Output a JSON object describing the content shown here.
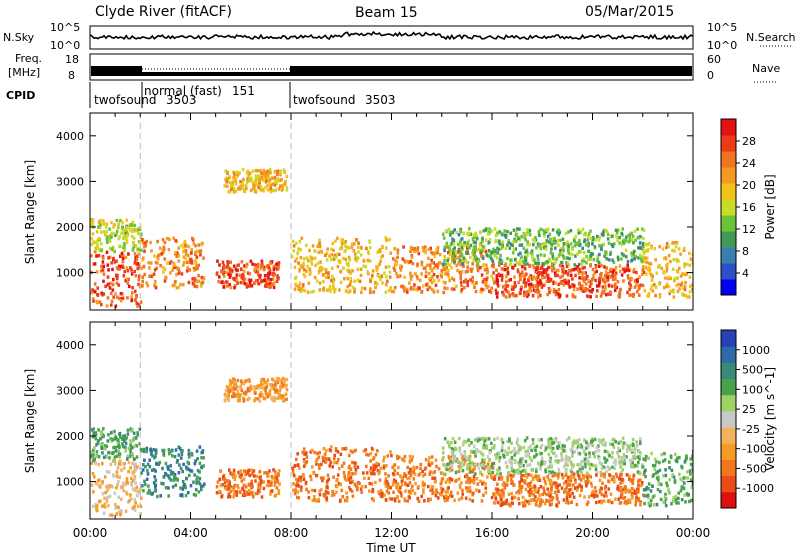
{
  "header": {
    "station": "Clyde River (fitACF)",
    "beam": "Beam 15",
    "date": "05/Mar/2015"
  },
  "noise_panel": {
    "left_label": "N.Sky",
    "left_ticks": [
      "10^5",
      "10^0"
    ],
    "right_label": "N.Search",
    "right_ticks": [
      "10^5",
      "10^0"
    ]
  },
  "freq_panel": {
    "left_label_top": "Freq.",
    "left_label_bottom": "[MHz]",
    "left_ticks": [
      "18",
      "8"
    ],
    "right_label": "Nave",
    "right_ticks": [
      "60",
      "0"
    ]
  },
  "cpid": {
    "label": "CPID",
    "modes": [
      {
        "name": "twofsound",
        "id": "3503",
        "start_hr": 0
      },
      {
        "name": "normal (fast)",
        "id": "151",
        "start_hr": 2.0
      },
      {
        "name": "twofsound",
        "id": "3503",
        "start_hr": 8.0
      }
    ]
  },
  "time_axis": {
    "label": "Time UT",
    "range_hr": [
      0,
      24
    ],
    "tick_labels": [
      "00:00",
      "04:00",
      "08:00",
      "12:00",
      "16:00",
      "20:00",
      "00:00"
    ]
  },
  "range_axis": {
    "label": "Slant Range [km]",
    "range_km": [
      180,
      4500
    ],
    "tick_labels": [
      "1000",
      "2000",
      "3000",
      "4000"
    ]
  },
  "power_colorbar": {
    "label": "Power [dB]",
    "tick_labels": [
      "4",
      "8",
      "12",
      "16",
      "20",
      "24",
      "28"
    ],
    "colors": [
      "#0000ee",
      "#2b50c8",
      "#3b7fae",
      "#3e9a55",
      "#6cc33a",
      "#c8dc28",
      "#f2c21a",
      "#f59a20",
      "#f27322",
      "#ef3a18",
      "#e21212"
    ]
  },
  "velocity_colorbar": {
    "label": "Velocity [m s^-1]",
    "tick_labels": [
      "1000",
      "500",
      "100",
      "25",
      "-25",
      "-100",
      "-500",
      "-1000"
    ],
    "colors": [
      "#2541b6",
      "#2e6aa8",
      "#3a8a78",
      "#4aa24a",
      "#9ed266",
      "#c8c8c8",
      "#f5b060",
      "#f59a24",
      "#f2761c",
      "#e84a18",
      "#dd1010"
    ]
  },
  "chart_data": {
    "type": "heatmap",
    "title": "Clyde River (fitACF)",
    "xlabel": "Time UT",
    "ylabel": "Slant Range [km]",
    "xlim_hr": [
      0,
      24
    ],
    "ylim_km": [
      180,
      4500
    ],
    "scatter_bands": [
      {
        "t0": 0.0,
        "t1": 2.0,
        "r0": 300,
        "r1": 1500,
        "power_db": 28,
        "velocity": -25
      },
      {
        "t0": 0.0,
        "t1": 2.0,
        "r0": 1500,
        "r1": 2200,
        "power_db": 16,
        "velocity": 100
      },
      {
        "t0": 2.0,
        "t1": 4.5,
        "r0": 700,
        "r1": 1800,
        "power_db": 24,
        "velocity": 500
      },
      {
        "t0": 5.0,
        "t1": 7.5,
        "r0": 700,
        "r1": 1300,
        "power_db": 28,
        "velocity": -500
      },
      {
        "t0": 5.3,
        "t1": 7.8,
        "r0": 2800,
        "r1": 3300,
        "power_db": 20,
        "velocity": -100
      },
      {
        "t0": 8.0,
        "t1": 12.0,
        "r0": 600,
        "r1": 1800,
        "power_db": 20,
        "velocity": -500
      },
      {
        "t0": 12.0,
        "t1": 16.0,
        "r0": 600,
        "r1": 1600,
        "power_db": 24,
        "velocity": -500
      },
      {
        "t0": 14.0,
        "t1": 22.0,
        "r0": 1200,
        "r1": 2000,
        "power_db": 12,
        "velocity": 25
      },
      {
        "t0": 16.0,
        "t1": 22.0,
        "r0": 500,
        "r1": 1200,
        "power_db": 28,
        "velocity": -500
      },
      {
        "t0": 22.0,
        "t1": 24.0,
        "r0": 500,
        "r1": 1700,
        "power_db": 20,
        "velocity": 100
      }
    ]
  }
}
